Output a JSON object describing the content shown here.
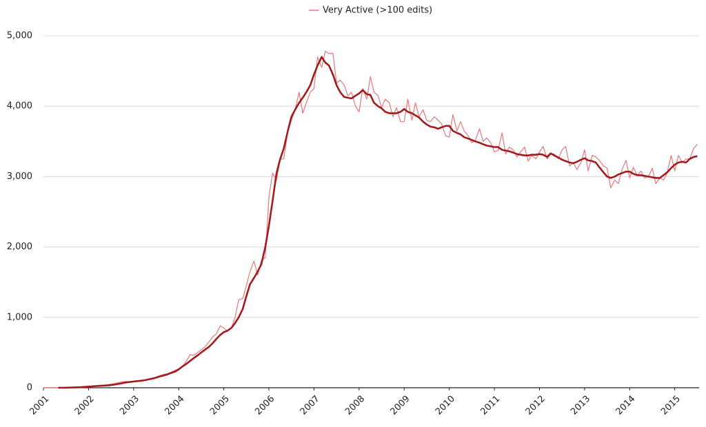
{
  "chart_data": {
    "type": "line",
    "x": [
      2001,
      2001.08,
      2001.17,
      2001.25,
      2001.33,
      2001.42,
      2001.5,
      2001.58,
      2001.67,
      2001.75,
      2001.83,
      2001.92,
      2002,
      2002.08,
      2002.17,
      2002.25,
      2002.33,
      2002.42,
      2002.5,
      2002.58,
      2002.67,
      2002.75,
      2002.83,
      2002.92,
      2003,
      2003.08,
      2003.17,
      2003.25,
      2003.33,
      2003.42,
      2003.5,
      2003.58,
      2003.67,
      2003.75,
      2003.83,
      2003.92,
      2004,
      2004.08,
      2004.17,
      2004.25,
      2004.33,
      2004.42,
      2004.5,
      2004.58,
      2004.67,
      2004.75,
      2004.83,
      2004.92,
      2005,
      2005.08,
      2005.17,
      2005.25,
      2005.33,
      2005.42,
      2005.5,
      2005.58,
      2005.67,
      2005.75,
      2005.83,
      2005.92,
      2006,
      2006.08,
      2006.17,
      2006.25,
      2006.33,
      2006.42,
      2006.5,
      2006.58,
      2006.67,
      2006.75,
      2006.83,
      2006.92,
      2007,
      2007.08,
      2007.17,
      2007.25,
      2007.33,
      2007.42,
      2007.5,
      2007.58,
      2007.67,
      2007.75,
      2007.83,
      2007.92,
      2008,
      2008.08,
      2008.17,
      2008.25,
      2008.33,
      2008.42,
      2008.5,
      2008.58,
      2008.67,
      2008.75,
      2008.83,
      2008.92,
      2009,
      2009.08,
      2009.17,
      2009.25,
      2009.33,
      2009.42,
      2009.5,
      2009.58,
      2009.67,
      2009.75,
      2009.83,
      2009.92,
      2010,
      2010.08,
      2010.17,
      2010.25,
      2010.33,
      2010.42,
      2010.5,
      2010.58,
      2010.67,
      2010.75,
      2010.83,
      2010.92,
      2011,
      2011.08,
      2011.17,
      2011.25,
      2011.33,
      2011.42,
      2011.5,
      2011.58,
      2011.67,
      2011.75,
      2011.83,
      2011.92,
      2012,
      2012.08,
      2012.17,
      2012.25,
      2012.33,
      2012.42,
      2012.5,
      2012.58,
      2012.67,
      2012.75,
      2012.83,
      2012.92,
      2013,
      2013.08,
      2013.17,
      2013.25,
      2013.33,
      2013.42,
      2013.5,
      2013.58,
      2013.67,
      2013.75,
      2013.83,
      2013.92,
      2014,
      2014.08,
      2014.17,
      2014.25,
      2014.33,
      2014.42,
      2014.5,
      2014.58,
      2014.67,
      2014.75,
      2014.83,
      2014.92,
      2015,
      2015.08,
      2015.17,
      2015.25,
      2015.33,
      2015.42,
      2015.5
    ],
    "series": [
      {
        "name": "Very Active (>100 edits)",
        "color": "#e8767a",
        "width": 1.2,
        "values": [
          0,
          0,
          0,
          0,
          2,
          3,
          5,
          6,
          8,
          10,
          15,
          20,
          22,
          25,
          28,
          30,
          35,
          40,
          50,
          60,
          75,
          85,
          90,
          85,
          95,
          100,
          105,
          110,
          120,
          140,
          150,
          170,
          190,
          200,
          220,
          250,
          270,
          300,
          380,
          470,
          460,
          500,
          540,
          580,
          650,
          720,
          760,
          880,
          850,
          800,
          850,
          1000,
          1250,
          1270,
          1450,
          1650,
          1800,
          1600,
          1800,
          1850,
          2700,
          3050,
          2950,
          3250,
          3250,
          3650,
          3800,
          3950,
          4200,
          3900,
          4050,
          4200,
          4250,
          4700,
          4550,
          4780,
          4750,
          4750,
          4330,
          4370,
          4300,
          4150,
          4200,
          4000,
          3920,
          4250,
          4100,
          4420,
          4200,
          4150,
          3980,
          4100,
          4050,
          3850,
          3980,
          3780,
          3780,
          4100,
          3800,
          4050,
          3850,
          3950,
          3800,
          3780,
          3850,
          3800,
          3750,
          3580,
          3560,
          3880,
          3650,
          3780,
          3650,
          3580,
          3480,
          3520,
          3680,
          3500,
          3550,
          3480,
          3350,
          3370,
          3620,
          3320,
          3420,
          3380,
          3280,
          3350,
          3420,
          3220,
          3300,
          3250,
          3350,
          3430,
          3250,
          3320,
          3320,
          3250,
          3380,
          3430,
          3150,
          3200,
          3100,
          3200,
          3380,
          3080,
          3300,
          3280,
          3230,
          3150,
          3120,
          2840,
          2950,
          2900,
          3100,
          3230,
          2980,
          3130,
          3020,
          3080,
          2980,
          3000,
          3120,
          2900,
          2980,
          2950,
          3050,
          3300,
          3080,
          3300,
          3200,
          3250,
          3250,
          3400,
          3460
        ]
      },
      {
        "color": "#a31a1e",
        "width": 2.6,
        "values": [
          null,
          null,
          null,
          null,
          0,
          0,
          1,
          2,
          4,
          6,
          8,
          12,
          16,
          20,
          24,
          27,
          30,
          33,
          38,
          45,
          55,
          65,
          75,
          82,
          88,
          95,
          100,
          108,
          118,
          130,
          145,
          160,
          175,
          190,
          210,
          230,
          260,
          300,
          340,
          380,
          420,
          460,
          500,
          540,
          580,
          630,
          690,
          750,
          790,
          810,
          850,
          920,
          1000,
          1120,
          1300,
          1470,
          1560,
          1650,
          1750,
          2000,
          2300,
          2650,
          3050,
          3250,
          3400,
          3650,
          3850,
          3950,
          4050,
          4120,
          4200,
          4300,
          4450,
          4580,
          4700,
          4620,
          4580,
          4450,
          4300,
          4200,
          4130,
          4120,
          4110,
          4150,
          4180,
          4230,
          4170,
          4160,
          4050,
          4000,
          3970,
          3920,
          3900,
          3900,
          3900,
          3920,
          3960,
          3920,
          3900,
          3870,
          3840,
          3780,
          3740,
          3710,
          3700,
          3680,
          3700,
          3720,
          3720,
          3650,
          3620,
          3600,
          3560,
          3540,
          3520,
          3500,
          3480,
          3460,
          3440,
          3430,
          3420,
          3420,
          3380,
          3370,
          3360,
          3340,
          3320,
          3310,
          3300,
          3300,
          3310,
          3310,
          3320,
          3310,
          3280,
          3330,
          3300,
          3270,
          3240,
          3220,
          3200,
          3190,
          3210,
          3240,
          3260,
          3230,
          3220,
          3200,
          3130,
          3060,
          3000,
          2980,
          3000,
          3030,
          3050,
          3070,
          3070,
          3040,
          3020,
          3020,
          3010,
          3000,
          2990,
          2980,
          2980,
          3020,
          3060,
          3120,
          3170,
          3200,
          3210,
          3200,
          3250,
          3280,
          3290
        ]
      }
    ],
    "xlim": [
      2001,
      2015.54
    ],
    "xticks": [
      2001,
      2002,
      2003,
      2004,
      2005,
      2006,
      2007,
      2008,
      2009,
      2010,
      2011,
      2012,
      2013,
      2014,
      2015
    ],
    "ylim": [
      0,
      5000
    ],
    "yticks": [
      0,
      {
        "value": 1000,
        "label": "1,000"
      },
      {
        "value": 2000,
        "label": "2,000"
      },
      {
        "value": 3000,
        "label": "3,000"
      },
      {
        "value": 4000,
        "label": "4,000"
      },
      {
        "value": 5000,
        "label": "5,000"
      }
    ],
    "grid": true,
    "legend": "top"
  }
}
